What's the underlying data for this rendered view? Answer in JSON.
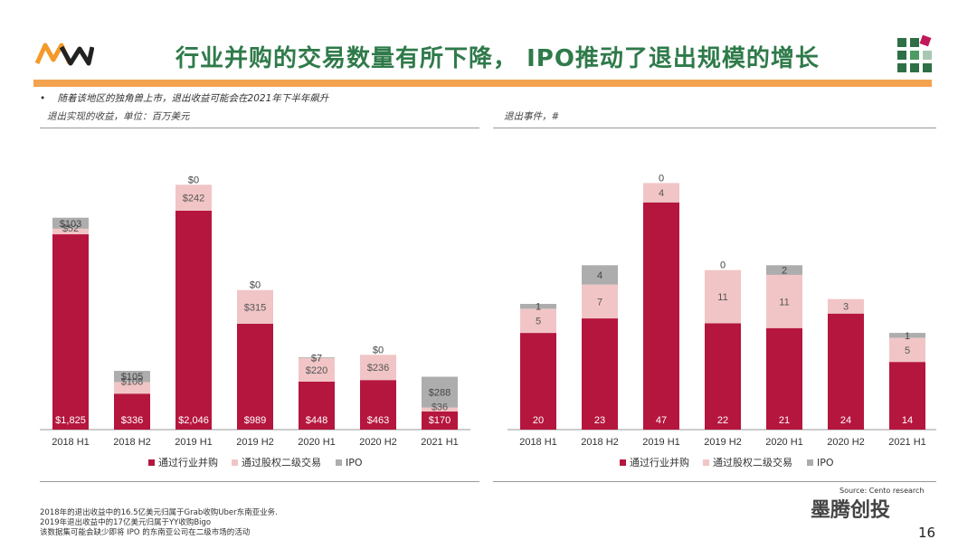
{
  "header": {
    "title": "行业并购的交易数量有所下降， IPO推动了退出规模的增长"
  },
  "colors": {
    "ma": "#b5163e",
    "secondary": "#f1c5c6",
    "ipo": "#adadad",
    "brand_green": "#2f7a4a",
    "accent_orange": "#f3a24f"
  },
  "bullet_text": "随着该地区的独角兽上市，退出收益可能会在2021年下半年飙升",
  "left_panel": {
    "heading": "退出实现的收益，单位：百万美元"
  },
  "right_panel": {
    "heading": "退出事件，#"
  },
  "chart_data": [
    {
      "type": "bar",
      "stacked": true,
      "categories": [
        "2018 H1",
        "2018 H2",
        "2019 H1",
        "2019 H2",
        "2020 H1",
        "2020 H2",
        "2021 H1"
      ],
      "series": [
        {
          "name": "通过行业并购",
          "values": [
            1825,
            336,
            2046,
            989,
            448,
            463,
            170
          ],
          "labels": [
            "$1,825",
            "$336",
            "$2,046",
            "$989",
            "$448",
            "$463",
            "$170"
          ]
        },
        {
          "name": "通过股权二级交易",
          "values": [
            52,
            108,
            242,
            315,
            220,
            236,
            36
          ],
          "labels": [
            "$52",
            "$108",
            "$242",
            "$315",
            "$220",
            "$236",
            "$36"
          ]
        },
        {
          "name": "IPO",
          "values": [
            103,
            105,
            0,
            0,
            7,
            0,
            288
          ],
          "labels": [
            "$103",
            "$105",
            "$0",
            "$0",
            "$7",
            "$0",
            "$288"
          ]
        }
      ],
      "ylim": [
        0,
        2400
      ],
      "legend": "bottom"
    },
    {
      "type": "bar",
      "stacked": true,
      "categories": [
        "2018 H1",
        "2018 H2",
        "2019 H1",
        "2019 H2",
        "2020 H1",
        "2020 H2",
        "2021 H1"
      ],
      "series": [
        {
          "name": "通过行业并购",
          "values": [
            20,
            23,
            47,
            22,
            21,
            24,
            14
          ],
          "labels": [
            "20",
            "23",
            "47",
            "22",
            "21",
            "24",
            "14"
          ]
        },
        {
          "name": "通过股权二级交易",
          "values": [
            5,
            7,
            4,
            11,
            11,
            3,
            5
          ],
          "labels": [
            "5",
            "7",
            "4",
            "11",
            "11",
            "3",
            "5"
          ]
        },
        {
          "name": "IPO",
          "values": [
            1,
            4,
            0,
            0,
            2,
            0,
            1
          ],
          "labels": [
            "1",
            "4",
            "0",
            "0",
            "2",
            "",
            "1"
          ]
        }
      ],
      "ylim": [
        0,
        55
      ],
      "legend": "bottom"
    }
  ],
  "footnotes": [
    "2018年的退出收益中的16.5亿美元归属于Grab收购Uber东南亚业务.",
    "2019年退出收益中的17亿美元归属于YY收购Bigo",
    "该数据集可能会缺少即将 IPO 的东南亚公司在二级市场的活动"
  ],
  "source": "Source: Cento research",
  "watermark": "墨腾创投",
  "page_number": "16"
}
